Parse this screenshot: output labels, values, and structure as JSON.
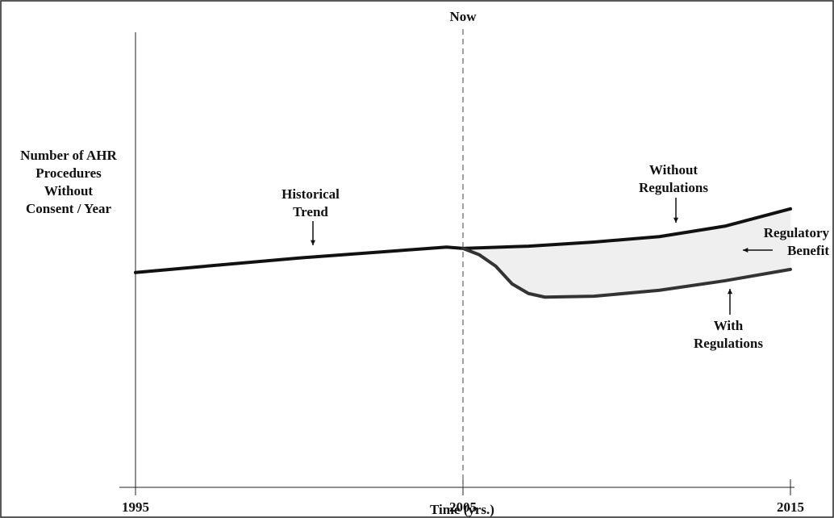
{
  "chart_data": {
    "type": "line",
    "xlabel": "Time (yrs.)",
    "ylabel_lines": [
      "Number of AHR",
      "Procedures",
      "Without",
      "Consent / Year"
    ],
    "xlim": [
      1995,
      2015
    ],
    "xticks": [
      1995,
      2005,
      2015
    ],
    "ylim": [
      0,
      100
    ],
    "reference_line": {
      "x": 2005,
      "label": "Now"
    },
    "series": [
      {
        "color": "#111111",
        "x": [
          1995,
          1997,
          2000,
          2003,
          2004.5,
          2005
        ],
        "values": [
          47.2,
          48.5,
          50.4,
          52,
          52.8,
          52.5
        ]
      },
      {
        "color": "#111111",
        "x": [
          2005,
          2007,
          2009,
          2011,
          2013,
          2015
        ],
        "values": [
          52.5,
          53,
          53.9,
          55.1,
          57.4,
          61.2
        ]
      },
      {
        "color": "#333333",
        "x": [
          2005,
          2005.5,
          2006,
          2006.5,
          2007,
          2007.5,
          2009,
          2011,
          2013,
          2015
        ],
        "values": [
          52.5,
          51.1,
          48.6,
          44.7,
          42.6,
          41.8,
          42,
          43.3,
          45.4,
          47.9
        ]
      }
    ],
    "fill_color": "#efefef",
    "annotations": [
      {
        "lines": [
          "Historical",
          "Trend"
        ]
      },
      {
        "lines": [
          "Without",
          "Regulations"
        ]
      },
      {
        "lines": [
          "Regulatory",
          "Benefit"
        ]
      },
      {
        "lines": [
          "With",
          "Regulations"
        ]
      }
    ]
  }
}
